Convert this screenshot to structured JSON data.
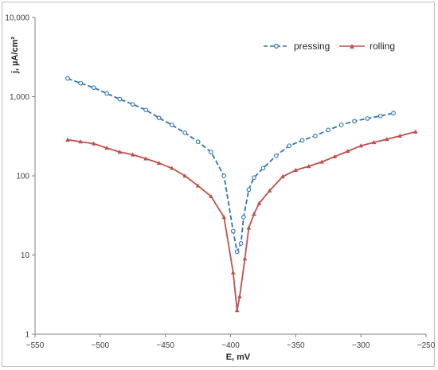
{
  "chart_data": {
    "type": "line",
    "title": "",
    "xlabel": "E, mV",
    "ylabel": "j, µA/cm²",
    "xlim": [
      -550,
      -250
    ],
    "ylim": [
      1,
      10000
    ],
    "y_scale": "log",
    "grid": false,
    "legend_position": "top-right",
    "x_ticks": [
      -550,
      -500,
      -450,
      -400,
      -350,
      -300,
      -250
    ],
    "x_tick_labels": [
      "−550",
      "−500",
      "−450",
      "−400",
      "−350",
      "−300",
      "−250"
    ],
    "y_ticks": [
      1,
      10,
      100,
      1000,
      10000
    ],
    "y_tick_labels": [
      "1",
      "10",
      "100",
      "1,000",
      "10,000"
    ],
    "series": [
      {
        "name": "pressing",
        "color": "#2e75b6",
        "line_style": "dashed",
        "marker": "circle-open",
        "points": [
          [
            -525,
            1700
          ],
          [
            -515,
            1480
          ],
          [
            -505,
            1300
          ],
          [
            -495,
            1100
          ],
          [
            -485,
            930
          ],
          [
            -475,
            800
          ],
          [
            -465,
            680
          ],
          [
            -455,
            540
          ],
          [
            -445,
            440
          ],
          [
            -435,
            350
          ],
          [
            -425,
            270
          ],
          [
            -415,
            200
          ],
          [
            -405,
            100
          ],
          [
            -398,
            20
          ],
          [
            -395,
            11
          ],
          [
            -392,
            14
          ],
          [
            -390,
            30
          ],
          [
            -386,
            67
          ],
          [
            -382,
            95
          ],
          [
            -375,
            125
          ],
          [
            -365,
            180
          ],
          [
            -355,
            240
          ],
          [
            -345,
            280
          ],
          [
            -335,
            320
          ],
          [
            -325,
            380
          ],
          [
            -315,
            440
          ],
          [
            -305,
            490
          ],
          [
            -295,
            530
          ],
          [
            -285,
            570
          ],
          [
            -275,
            620
          ]
        ]
      },
      {
        "name": "rolling",
        "color": "#c0504d",
        "line_style": "solid",
        "marker": "triangle",
        "points": [
          [
            -525,
            285
          ],
          [
            -515,
            270
          ],
          [
            -505,
            255
          ],
          [
            -495,
            225
          ],
          [
            -485,
            200
          ],
          [
            -475,
            185
          ],
          [
            -465,
            165
          ],
          [
            -455,
            145
          ],
          [
            -445,
            125
          ],
          [
            -435,
            100
          ],
          [
            -425,
            75
          ],
          [
            -415,
            55
          ],
          [
            -405,
            30
          ],
          [
            -398,
            6
          ],
          [
            -395,
            2
          ],
          [
            -393,
            3
          ],
          [
            -389,
            9
          ],
          [
            -386,
            22
          ],
          [
            -382,
            33
          ],
          [
            -378,
            45
          ],
          [
            -370,
            65
          ],
          [
            -360,
            98
          ],
          [
            -350,
            118
          ],
          [
            -340,
            132
          ],
          [
            -330,
            150
          ],
          [
            -320,
            175
          ],
          [
            -310,
            205
          ],
          [
            -300,
            240
          ],
          [
            -290,
            265
          ],
          [
            -280,
            290
          ],
          [
            -270,
            320
          ],
          [
            -258,
            360
          ]
        ]
      }
    ]
  }
}
